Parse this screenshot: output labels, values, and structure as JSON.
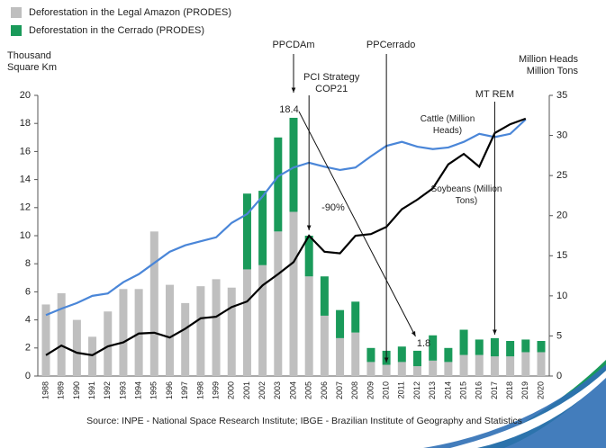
{
  "chart_data": {
    "type": "bar",
    "categories": [
      "1988",
      "1989",
      "1990",
      "1991",
      "1992",
      "1993",
      "1994",
      "1995",
      "1996",
      "1997",
      "1998",
      "1999",
      "2000",
      "2001",
      "2002",
      "2003",
      "2004",
      "2005",
      "2006",
      "2007",
      "2008",
      "2009",
      "2010",
      "2011",
      "2012",
      "2013",
      "2014",
      "2015",
      "2016",
      "2017",
      "2018",
      "2019",
      "2020"
    ],
    "series": [
      {
        "name": "Deforestation in the Legal Amazon (PRODES)",
        "type": "bar",
        "color": "#bfbfbf",
        "values": [
          5.1,
          5.9,
          4.0,
          2.8,
          4.6,
          6.2,
          6.2,
          10.3,
          6.5,
          5.2,
          6.4,
          6.9,
          6.3,
          7.6,
          7.9,
          10.3,
          11.7,
          7.1,
          4.3,
          2.7,
          3.1,
          1.0,
          0.8,
          1.0,
          0.7,
          1.1,
          1.0,
          1.5,
          1.5,
          1.4,
          1.4,
          1.7,
          1.7
        ]
      },
      {
        "name": "Deforestation in the Cerrado (PRODES)",
        "type": "bar",
        "color": "#1a9a5a",
        "values": [
          null,
          null,
          null,
          null,
          null,
          null,
          null,
          null,
          null,
          null,
          null,
          null,
          null,
          5.4,
          5.3,
          6.7,
          6.7,
          2.9,
          2.8,
          2.0,
          2.2,
          1.0,
          1.0,
          1.1,
          1.1,
          1.8,
          1.0,
          1.8,
          1.1,
          1.3,
          1.1,
          0.9,
          0.8
        ]
      },
      {
        "name": "Cattle (Million Heads)",
        "type": "line",
        "axis": "y2",
        "color": "#4a86d8",
        "values": [
          7.6,
          8.4,
          9.1,
          10.0,
          10.3,
          11.7,
          12.7,
          14.1,
          15.5,
          16.3,
          16.8,
          17.3,
          19.1,
          20.2,
          22.4,
          24.9,
          26.0,
          26.6,
          26.1,
          25.7,
          26.0,
          27.4,
          28.7,
          29.2,
          28.6,
          28.3,
          28.5,
          29.2,
          30.2,
          29.8,
          30.2,
          32.0,
          null
        ]
      },
      {
        "name": "Soybeans (Million Tons)",
        "type": "line",
        "axis": "y2",
        "color": "#000000",
        "values": [
          2.6,
          3.8,
          2.9,
          2.6,
          3.7,
          4.2,
          5.3,
          5.4,
          4.8,
          5.9,
          7.2,
          7.4,
          8.6,
          9.3,
          11.3,
          12.7,
          14.2,
          17.5,
          15.5,
          15.3,
          17.5,
          17.7,
          18.6,
          20.8,
          22.0,
          23.4,
          26.4,
          27.7,
          26.1,
          30.3,
          31.4,
          32.1,
          null
        ]
      }
    ],
    "y_label": "Thousand Square Km",
    "y2_label": "Million Heads Million Tons",
    "ylim": [
      0,
      20
    ],
    "yticks": [
      0,
      2,
      4,
      6,
      8,
      10,
      12,
      14,
      16,
      18,
      20
    ],
    "y2lim": [
      0,
      35
    ],
    "y2ticks": [
      0,
      5,
      10,
      15,
      20,
      25,
      30,
      35
    ],
    "annotations": [
      {
        "text": "PPCDAm"
      },
      {
        "text": "PCI Strategy COP21"
      },
      {
        "text": "PPCerrado"
      },
      {
        "text": "MT REM"
      },
      {
        "text": "18.4"
      },
      {
        "text": "1.8"
      },
      {
        "text": "-90%"
      }
    ],
    "source": "Source: INPE - National Space Research Institute;  IBGE - Brazilian Institute  of Geography and Statistics",
    "legend": "top-left"
  }
}
